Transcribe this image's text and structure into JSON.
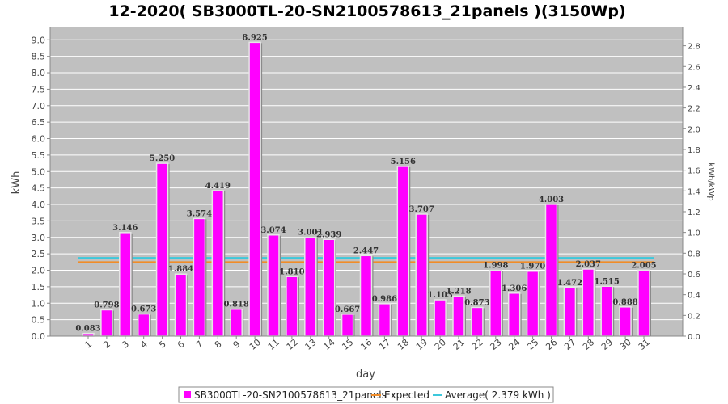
{
  "colors": {
    "bar": "#ff00ff",
    "expected": "#f08c28",
    "average": "#3cc8dc",
    "plot_bg": "#c0c0c0",
    "grid": "#ffffff"
  },
  "chart_data": {
    "type": "bar",
    "title": "12-2020( SB3000TL-20-SN2100578613_21panels )(3150Wp)",
    "xlabel": "day",
    "ylabel": "kWh",
    "ylabel_right": "kWh/kWp",
    "ylim": [
      0,
      9.4
    ],
    "yticks": [
      "0.0",
      "0.5",
      "1.0",
      "1.5",
      "2.0",
      "2.5",
      "3.0",
      "3.5",
      "4.0",
      "4.5",
      "5.0",
      "5.5",
      "6.0",
      "6.5",
      "7.0",
      "7.5",
      "8.0",
      "8.5",
      "9.0"
    ],
    "ylim_right": [
      0,
      2.984
    ],
    "yticks_right": [
      "0.0",
      "0.2",
      "0.4",
      "0.6",
      "0.8",
      "1.0",
      "1.2",
      "1.4",
      "1.6",
      "1.8",
      "2.0",
      "2.2",
      "2.4",
      "2.6",
      "2.8"
    ],
    "categories": [
      "1",
      "2",
      "3",
      "4",
      "5",
      "6",
      "7",
      "8",
      "9",
      "10",
      "11",
      "12",
      "13",
      "14",
      "15",
      "16",
      "17",
      "18",
      "19",
      "20",
      "21",
      "22",
      "23",
      "24",
      "25",
      "26",
      "27",
      "28",
      "29",
      "30",
      "31"
    ],
    "series": [
      {
        "name": "SB3000TL-20-SN2100578613_21panels",
        "values": [
          0.083,
          0.798,
          3.146,
          0.673,
          5.25,
          1.884,
          3.574,
          4.419,
          0.818,
          8.925,
          3.074,
          1.81,
          3.001,
          2.939,
          0.667,
          2.447,
          0.986,
          5.156,
          3.707,
          1.103,
          1.218,
          0.873,
          1.998,
          1.306,
          1.97,
          4.003,
          1.472,
          2.037,
          1.515,
          0.888,
          2.005
        ],
        "labels": [
          "0.083",
          "0.798",
          "3.146",
          "0.673",
          "5.250",
          "1.884",
          "3.574",
          "4.419",
          "0.818",
          "8.925",
          "3.074",
          "1.810",
          "3.001",
          "2.939",
          "0.667",
          "2.447",
          "0.986",
          "5.156",
          "3.707",
          "1.103",
          "1.218",
          "0.873",
          "1.998",
          "1.306",
          "1.970",
          "4.003",
          "1.472",
          "2.037",
          "1.515",
          "0.888",
          "2.005"
        ]
      }
    ],
    "expected": 2.25,
    "average": 2.379,
    "legend": {
      "placement": "bottom",
      "items": [
        "SB3000TL-20-SN2100578613_21panels",
        "Expected",
        "Average( 2.379 kWh )"
      ]
    }
  }
}
